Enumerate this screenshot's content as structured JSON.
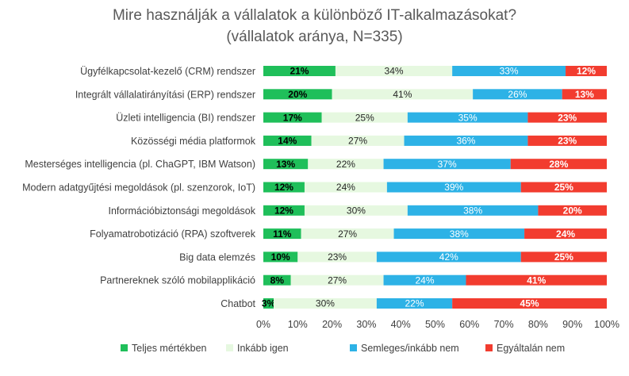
{
  "chart_data": {
    "type": "bar",
    "orientation": "horizontal",
    "stacked": "100%",
    "title": "Mire használják a vállalatok a különböző IT-alkalmazásokat?",
    "subtitle": "(vállalatok aránya, N=335)",
    "categories": [
      "Ügyfélkapcsolat-kezelő (CRM) rendszer",
      "Integrált vállalatirányítási (ERP) rendszer",
      "Üzleti intelligencia (BI) rendszer",
      "Közösségi média platformok",
      "Mesterséges intelligencia (pl. ChaGPT, IBM Watson)",
      "Modern adatgyűjtési megoldások (pl. szenzorok, IoT)",
      "Információbiztonsági megoldások",
      "Folyamatrobotizáció (RPA) szoftverek",
      "Big data elemzés",
      "Partnereknek szóló mobilapplikáció",
      "Chatbot"
    ],
    "series": [
      {
        "name": "Teljes mértékben",
        "color": "#1FBF5A",
        "label_color": "#000000",
        "label_bold": true,
        "values": [
          21,
          20,
          17,
          14,
          13,
          12,
          12,
          11,
          10,
          8,
          3
        ]
      },
      {
        "name": "Inkább igen",
        "color": "#E6F8E0",
        "label_color": "#262626",
        "label_bold": false,
        "values": [
          34,
          41,
          25,
          27,
          22,
          24,
          30,
          27,
          23,
          27,
          30
        ]
      },
      {
        "name": "Semleges/inkább nem",
        "color": "#2DB2E6",
        "label_color": "#ffffff",
        "label_bold": false,
        "values": [
          33,
          26,
          35,
          36,
          37,
          39,
          38,
          38,
          42,
          24,
          22
        ]
      },
      {
        "name": "Egyáltalán nem",
        "color": "#F23C2F",
        "label_color": "#ffffff",
        "label_bold": true,
        "values": [
          12,
          13,
          23,
          23,
          28,
          25,
          20,
          24,
          25,
          41,
          45
        ]
      }
    ],
    "x_ticks": [
      "0%",
      "10%",
      "20%",
      "30%",
      "40%",
      "50%",
      "60%",
      "70%",
      "80%",
      "90%",
      "100%"
    ],
    "xlim": [
      0,
      100
    ],
    "grid": false,
    "legend_position": "bottom"
  }
}
